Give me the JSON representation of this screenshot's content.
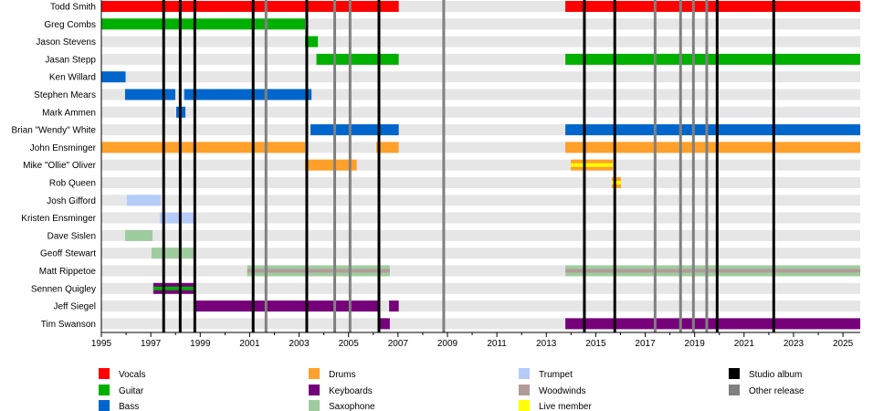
{
  "chart_data": {
    "type": "timeline",
    "xlim": [
      1995,
      2025.7
    ],
    "x_ticks": [
      "1995",
      "1997",
      "1999",
      "2001",
      "2003",
      "2005",
      "2007",
      "2009",
      "2011",
      "2013",
      "2015",
      "2017",
      "2019",
      "2021",
      "2023",
      "2025"
    ],
    "colors": {
      "Vocals": "#ff0000",
      "Guitar": "#00b000",
      "Bass": "#0066cc",
      "Drums": "#ffa02a",
      "Keyboards": "#75007a",
      "Saxophone": "#9fcc9f",
      "Trumpet": "#b4ccf7",
      "Woodwinds": "#b39a9a",
      "Live member": "#ffff00",
      "Studio album": "#000000",
      "Other release": "#808080"
    },
    "members": [
      {
        "name": "Todd Smith",
        "periods": [
          {
            "role": "Vocals",
            "start": 1995,
            "end": 2007.03
          },
          {
            "role": "Vocals",
            "start": 2013.77,
            "end": 2025.7
          }
        ]
      },
      {
        "name": "Greg Combs",
        "periods": [
          {
            "role": "Guitar",
            "start": 1995,
            "end": 2003.24
          }
        ]
      },
      {
        "name": "Jason Stevens",
        "periods": [
          {
            "role": "Guitar",
            "start": 2003.24,
            "end": 2003.76
          }
        ]
      },
      {
        "name": "Jasan Stepp",
        "periods": [
          {
            "role": "Guitar",
            "start": 2003.7,
            "end": 2007.03
          },
          {
            "role": "Guitar",
            "start": 2013.77,
            "end": 2025.7
          }
        ]
      },
      {
        "name": "Ken Willard",
        "periods": [
          {
            "role": "Bass",
            "start": 1995,
            "end": 1995.98
          }
        ]
      },
      {
        "name": "Stephen Mears",
        "periods": [
          {
            "role": "Bass",
            "start": 1995.96,
            "end": 1997.99
          },
          {
            "role": "Bass",
            "start": 1998.35,
            "end": 2003.5
          }
        ]
      },
      {
        "name": "Mark Ammen",
        "periods": [
          {
            "role": "Bass",
            "start": 1998.03,
            "end": 1998.4
          }
        ]
      },
      {
        "name": "Brian \"Wendy\" White",
        "periods": [
          {
            "role": "Bass",
            "start": 2003.46,
            "end": 2007.03
          },
          {
            "role": "Bass",
            "start": 2013.77,
            "end": 2025.7
          }
        ]
      },
      {
        "name": "John Ensminger",
        "periods": [
          {
            "role": "Drums",
            "start": 1995,
            "end": 2003.24
          },
          {
            "role": "Drums",
            "start": 2006.12,
            "end": 2007.03
          },
          {
            "role": "Drums",
            "start": 2013.77,
            "end": 2025.7
          }
        ]
      },
      {
        "name": "Mike \"Ollie\" Oliver",
        "periods": [
          {
            "role": "Drums",
            "start": 2003.24,
            "end": 2005.33
          },
          {
            "role": "Drums",
            "start": 2013.99,
            "end": 2015.69,
            "stripe": "Live member"
          }
        ]
      },
      {
        "name": "Rob Queen",
        "periods": [
          {
            "role": "Drums",
            "start": 2015.65,
            "end": 2016.02,
            "stripe": "Live member"
          }
        ]
      },
      {
        "name": "Josh Gifford",
        "periods": [
          {
            "role": "Trumpet",
            "start": 1996.03,
            "end": 1997.4
          }
        ]
      },
      {
        "name": "Kristen Ensminger",
        "periods": [
          {
            "role": "Trumpet",
            "start": 1997.36,
            "end": 1998.8
          }
        ]
      },
      {
        "name": "Dave Sislen",
        "periods": [
          {
            "role": "Saxophone",
            "start": 1995.96,
            "end": 1997.07
          }
        ]
      },
      {
        "name": "Geoff Stewart",
        "periods": [
          {
            "role": "Saxophone",
            "start": 1997.03,
            "end": 1998.8
          }
        ]
      },
      {
        "name": "Matt Rippetoe",
        "periods": [
          {
            "role": "Saxophone",
            "start": 2000.9,
            "end": 2006.67,
            "stripe": "Woodwinds"
          },
          {
            "role": "Saxophone",
            "start": 2013.77,
            "end": 2025.7,
            "stripe": "Woodwinds"
          }
        ]
      },
      {
        "name": "Sennen Quigley",
        "periods": [
          {
            "role": "Keyboards",
            "start": 1997.1,
            "end": 1998.73,
            "stripe": "Guitar"
          }
        ]
      },
      {
        "name": "Jeff Siegel",
        "periods": [
          {
            "role": "Keyboards",
            "start": 1998.73,
            "end": 2006.23
          },
          {
            "role": "Keyboards",
            "start": 2006.64,
            "end": 2007.03
          }
        ]
      },
      {
        "name": "Tim Swanson",
        "periods": [
          {
            "role": "Keyboards",
            "start": 2006.23,
            "end": 2006.67
          },
          {
            "role": "Keyboards",
            "start": 2013.77,
            "end": 2025.7
          }
        ]
      }
    ],
    "studio_albums": [
      1997.52,
      1998.19,
      1998.78,
      2001.14,
      2003.31,
      2006.23,
      2014.54,
      2015.77,
      2019.91,
      2022.2
    ],
    "other_releases": [
      2001.66,
      2004.44,
      2005.06,
      2008.85,
      2017.4,
      2018.43,
      2018.95,
      2019.49
    ],
    "legend": [
      "Vocals",
      "Guitar",
      "Bass",
      "Drums",
      "Keyboards",
      "Saxophone",
      "Trumpet",
      "Woodwinds",
      "Live member",
      "Studio album",
      "Other release"
    ],
    "legend_placement": "bottom"
  }
}
